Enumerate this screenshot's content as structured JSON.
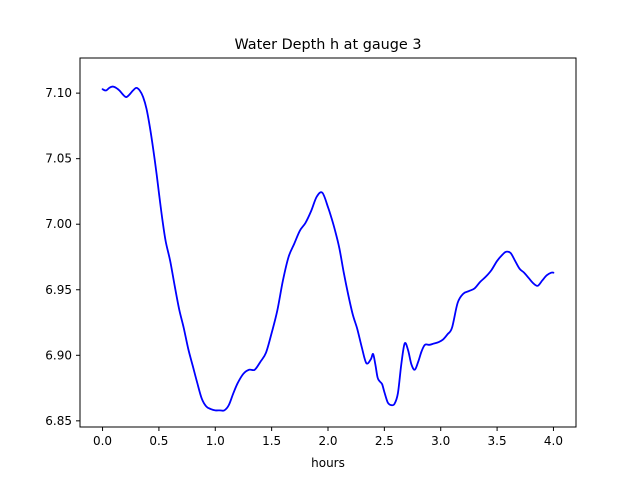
{
  "chart_data": {
    "type": "line",
    "title": "Water Depth h at gauge 3",
    "xlabel": "hours",
    "ylabel": "",
    "xlim": [
      -0.2,
      4.2
    ],
    "ylim": [
      6.8453,
      7.1268
    ],
    "xticks": [
      0.0,
      0.5,
      1.0,
      1.5,
      2.0,
      2.5,
      3.0,
      3.5,
      4.0
    ],
    "xtick_labels": [
      "0.0",
      "0.5",
      "1.0",
      "1.5",
      "2.0",
      "2.5",
      "3.0",
      "3.5",
      "4.0"
    ],
    "yticks": [
      6.85,
      6.9,
      6.95,
      7.0,
      7.05,
      7.1
    ],
    "ytick_labels": [
      "6.85",
      "6.90",
      "6.95",
      "7.00",
      "7.05",
      "7.10"
    ],
    "grid": false,
    "series": [
      {
        "name": "h",
        "color": "#0000ff",
        "x": [
          0.0,
          0.03,
          0.06,
          0.09,
          0.12,
          0.15,
          0.18,
          0.21,
          0.24,
          0.27,
          0.3,
          0.33,
          0.36,
          0.39,
          0.42,
          0.45,
          0.48,
          0.5,
          0.53,
          0.56,
          0.6,
          0.64,
          0.68,
          0.72,
          0.76,
          0.8,
          0.84,
          0.88,
          0.92,
          0.96,
          1.0,
          1.04,
          1.08,
          1.12,
          1.16,
          1.2,
          1.25,
          1.3,
          1.35,
          1.4,
          1.45,
          1.5,
          1.55,
          1.6,
          1.65,
          1.7,
          1.75,
          1.8,
          1.85,
          1.9,
          1.95,
          2.0,
          2.03,
          2.06,
          2.1,
          2.14,
          2.18,
          2.22,
          2.26,
          2.3,
          2.34,
          2.38,
          2.4,
          2.42,
          2.44,
          2.46,
          2.48,
          2.5,
          2.53,
          2.56,
          2.59,
          2.62,
          2.65,
          2.68,
          2.71,
          2.74,
          2.77,
          2.8,
          2.83,
          2.86,
          2.9,
          2.94,
          2.98,
          3.02,
          3.06,
          3.1,
          3.15,
          3.2,
          3.25,
          3.3,
          3.35,
          3.4,
          3.45,
          3.5,
          3.55,
          3.58,
          3.62,
          3.66,
          3.7,
          3.74,
          3.78,
          3.82,
          3.86,
          3.9,
          3.94,
          3.98,
          4.0
        ],
        "y": [
          7.103,
          7.102,
          7.104,
          7.105,
          7.104,
          7.102,
          7.099,
          7.097,
          7.099,
          7.102,
          7.104,
          7.102,
          7.097,
          7.088,
          7.074,
          7.057,
          7.038,
          7.024,
          7.004,
          6.987,
          6.972,
          6.953,
          6.935,
          6.921,
          6.905,
          6.892,
          6.879,
          6.867,
          6.861,
          6.859,
          6.858,
          6.858,
          6.858,
          6.862,
          6.871,
          6.879,
          6.886,
          6.889,
          6.889,
          6.895,
          6.902,
          6.917,
          6.934,
          6.957,
          6.975,
          6.985,
          6.995,
          7.001,
          7.01,
          7.021,
          7.024,
          7.013,
          7.005,
          6.996,
          6.982,
          6.963,
          6.946,
          6.931,
          6.92,
          6.906,
          6.894,
          6.897,
          6.901,
          6.893,
          6.883,
          6.88,
          6.878,
          6.872,
          6.864,
          6.862,
          6.863,
          6.871,
          6.893,
          6.909,
          6.904,
          6.893,
          6.889,
          6.895,
          6.903,
          6.908,
          6.908,
          6.909,
          6.91,
          6.912,
          6.916,
          6.921,
          6.94,
          6.947,
          6.949,
          6.951,
          6.956,
          6.96,
          6.965,
          6.972,
          6.977,
          6.979,
          6.978,
          6.972,
          6.966,
          6.963,
          6.959,
          6.955,
          6.953,
          6.957,
          6.961,
          6.963,
          6.963
        ]
      }
    ]
  }
}
